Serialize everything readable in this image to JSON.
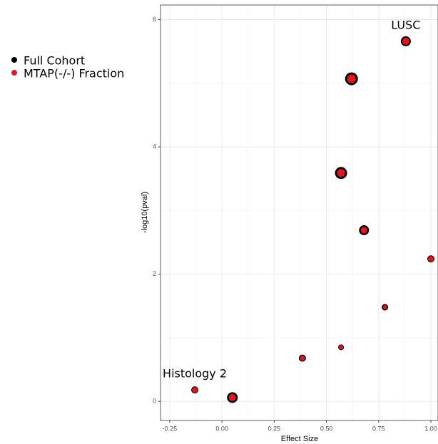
{
  "chart_data": {
    "type": "scatter",
    "x_label": "Effect Size",
    "y_label": "-log10(pval)",
    "x": [
      0.88,
      0.62,
      0.57,
      0.68,
      1.0,
      0.78,
      0.57,
      0.385,
      -0.13,
      0.05
    ],
    "series": [
      {
        "name": "Full Cohort",
        "color": "#000000",
        "values": [
          5.66,
          5.07,
          3.59,
          2.69,
          2.24,
          1.48,
          0.85,
          0.68,
          0.18,
          0.06
        ],
        "sizes": [
          7,
          9,
          8.5,
          7,
          5,
          4.5,
          4,
          5,
          5,
          7.5
        ]
      },
      {
        "name": "MTAP(-/-) Fraction",
        "color": "#e8141b",
        "values": [
          5.66,
          5.07,
          3.59,
          2.69,
          2.24,
          1.48,
          0.85,
          0.68,
          0.18,
          0.06
        ],
        "sizes": [
          5,
          6,
          5.5,
          4.5,
          4,
          3,
          3,
          3.5,
          4,
          5
        ]
      }
    ],
    "point_labels": [
      "LUSC",
      null,
      null,
      null,
      null,
      null,
      null,
      null,
      "Histology 2",
      null
    ],
    "xlim": [
      -0.294,
      1.034
    ],
    "xticks": [
      {
        "value": -0.25,
        "label": "-0.25"
      },
      {
        "value": 0,
        "label": "0.00"
      },
      {
        "value": 0.25,
        "label": "0.25"
      },
      {
        "value": 0.5,
        "label": "0.50"
      },
      {
        "value": 0.75,
        "label": "0.75"
      },
      {
        "value": 1,
        "label": "1.00"
      }
    ],
    "ylim": [
      -0.3,
      6.23
    ],
    "yticks": [
      0,
      2,
      4,
      6
    ],
    "grid": true
  }
}
